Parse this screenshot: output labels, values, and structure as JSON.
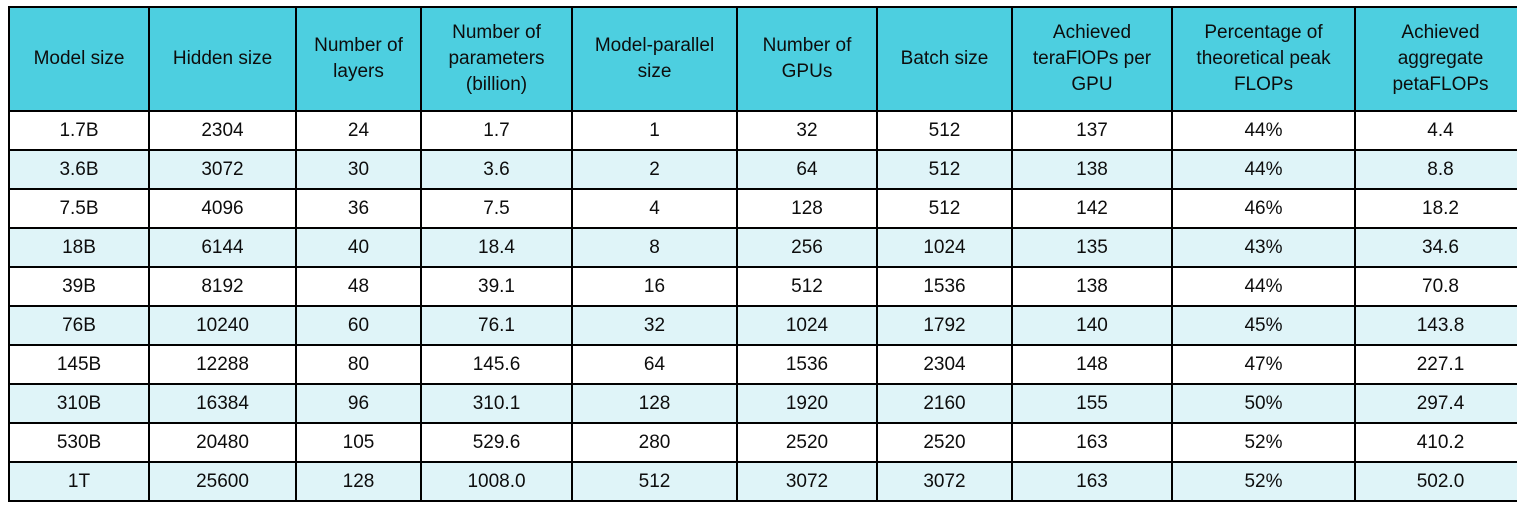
{
  "colors": {
    "header_background": "#4dcfe0",
    "row_background": "#ffffff",
    "row_alternate_background": "#dff4f8",
    "border": "#000000",
    "text": "#0d0d0d"
  },
  "chart_data": {
    "type": "table",
    "title": "",
    "columns": [
      "Model size",
      "Hidden size",
      "Number of layers",
      "Number of parameters (billion)",
      "Model-parallel size",
      "Number of GPUs",
      "Batch size",
      "Achieved teraFlOPs per GPU",
      "Percentage of theoretical peak FLOPs",
      "Achieved aggregate petaFLOPs"
    ],
    "rows": [
      [
        "1.7B",
        "2304",
        "24",
        "1.7",
        "1",
        "32",
        "512",
        "137",
        "44%",
        "4.4"
      ],
      [
        "3.6B",
        "3072",
        "30",
        "3.6",
        "2",
        "64",
        "512",
        "138",
        "44%",
        "8.8"
      ],
      [
        "7.5B",
        "4096",
        "36",
        "7.5",
        "4",
        "128",
        "512",
        "142",
        "46%",
        "18.2"
      ],
      [
        "18B",
        "6144",
        "40",
        "18.4",
        "8",
        "256",
        "1024",
        "135",
        "43%",
        "34.6"
      ],
      [
        "39B",
        "8192",
        "48",
        "39.1",
        "16",
        "512",
        "1536",
        "138",
        "44%",
        "70.8"
      ],
      [
        "76B",
        "10240",
        "60",
        "76.1",
        "32",
        "1024",
        "1792",
        "140",
        "45%",
        "143.8"
      ],
      [
        "145B",
        "12288",
        "80",
        "145.6",
        "64",
        "1536",
        "2304",
        "148",
        "47%",
        "227.1"
      ],
      [
        "310B",
        "16384",
        "96",
        "310.1",
        "128",
        "1920",
        "2160",
        "155",
        "50%",
        "297.4"
      ],
      [
        "530B",
        "20480",
        "105",
        "529.6",
        "280",
        "2520",
        "2520",
        "163",
        "52%",
        "410.2"
      ],
      [
        "1T",
        "25600",
        "128",
        "1008.0",
        "512",
        "3072",
        "3072",
        "163",
        "52%",
        "502.0"
      ]
    ]
  }
}
